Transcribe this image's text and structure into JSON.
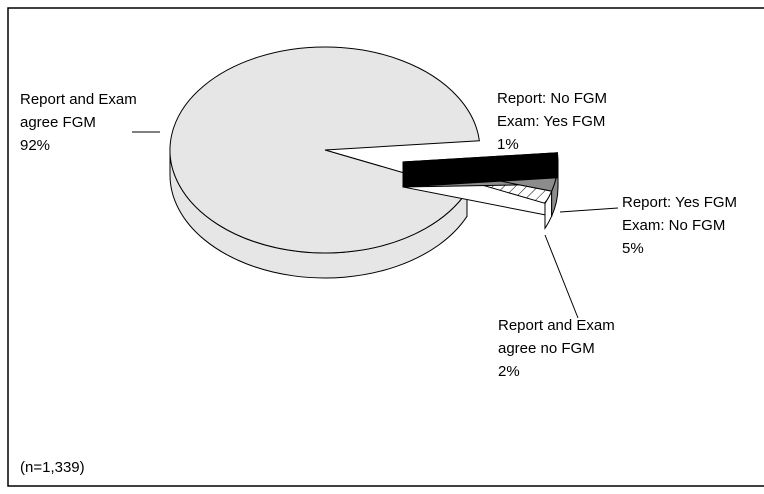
{
  "chart_data": {
    "type": "pie",
    "categories": [
      [
        "Report and Exam",
        "agree FGM"
      ],
      [
        "Report: No FGM",
        "Exam: Yes FGM"
      ],
      [
        "Report: Yes FGM",
        "Exam: No FGM"
      ],
      [
        "Report and Exam",
        "agree no FGM"
      ]
    ],
    "values": [
      92,
      1,
      5,
      2
    ],
    "value_labels": [
      "92%",
      "1%",
      "5%",
      "2%"
    ],
    "colors": [
      "#e6e6e6",
      "#000000",
      "#8c8c8c",
      "#ffffff"
    ],
    "note": "(n=1,339)"
  }
}
